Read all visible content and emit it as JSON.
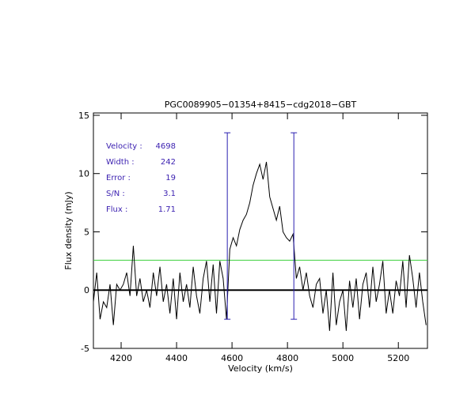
{
  "chart_data": {
    "type": "line",
    "title": "PGC0089905−01354+8415−cdg2018−GBT",
    "xlabel": "Velocity (km/s)",
    "ylabel": "Flux density (mJy)",
    "xlim": [
      4100,
      5305
    ],
    "ylim": [
      -5,
      15.2
    ],
    "xticks": [
      4200,
      4400,
      4600,
      4800,
      5000,
      5200
    ],
    "yticks": [
      -5,
      0,
      5,
      10,
      15
    ],
    "stats": [
      {
        "label": "Velocity :",
        "value": 4698
      },
      {
        "label": "Width :",
        "value": 242
      },
      {
        "label": "Error :",
        "value": 19
      },
      {
        "label": "S/N :",
        "value": 3.1
      },
      {
        "label": "Flux :",
        "value": 1.71
      }
    ],
    "markers": [
      4583,
      4823
    ],
    "marker_range": [
      -2.5,
      13.5
    ],
    "marker_color": "#2a1fb0",
    "threshold": 2.57,
    "threshold_color": "#3cd03c",
    "series": [
      {
        "color": "#000000",
        "x": [
          4100,
          4112,
          4124,
          4136,
          4148,
          4160,
          4172,
          4184,
          4196,
          4208,
          4220,
          4232,
          4244,
          4256,
          4268,
          4280,
          4292,
          4304,
          4316,
          4328,
          4340,
          4352,
          4364,
          4376,
          4388,
          4400,
          4412,
          4424,
          4436,
          4448,
          4460,
          4472,
          4484,
          4496,
          4508,
          4520,
          4532,
          4544,
          4556,
          4568,
          4580,
          4592,
          4604,
          4616,
          4628,
          4640,
          4652,
          4664,
          4676,
          4688,
          4700,
          4712,
          4724,
          4736,
          4748,
          4760,
          4772,
          4784,
          4796,
          4808,
          4820,
          4832,
          4844,
          4856,
          4868,
          4880,
          4892,
          4904,
          4916,
          4928,
          4940,
          4952,
          4964,
          4976,
          4988,
          5000,
          5012,
          5024,
          5036,
          5048,
          5060,
          5072,
          5084,
          5096,
          5108,
          5120,
          5132,
          5144,
          5156,
          5168,
          5180,
          5192,
          5204,
          5216,
          5228,
          5240,
          5252,
          5264,
          5276,
          5288,
          5300
        ],
        "values": [
          -1,
          1.5,
          -2.5,
          -1,
          -1.5,
          0.5,
          -3,
          0.5,
          0,
          0.5,
          1.5,
          -0.5,
          3.8,
          -0.5,
          1,
          -1,
          0,
          -1.5,
          1.5,
          -0.5,
          2,
          -1,
          0.5,
          -2,
          1,
          -2.5,
          1.5,
          -1,
          0.5,
          -1.5,
          2,
          -0.5,
          -2,
          1,
          2.5,
          -1,
          2.2,
          -2,
          2.5,
          1,
          -2.5,
          3.5,
          4.5,
          3.8,
          5.2,
          6,
          6.5,
          7.5,
          9,
          10,
          10.8,
          9.5,
          11,
          8,
          7,
          6,
          7.2,
          5,
          4.5,
          4.2,
          4.8,
          1,
          2,
          0,
          1.5,
          -0.5,
          -1.5,
          0.5,
          1,
          -2,
          0,
          -3.5,
          1.5,
          -3,
          -1,
          0,
          -3.5,
          0.8,
          -1.5,
          1,
          -2.5,
          0.5,
          1.5,
          -1.5,
          2,
          -1,
          0.5,
          2.5,
          -2,
          0,
          -2,
          0.8,
          -0.5,
          2.5,
          -1.5,
          3,
          1,
          -1.5,
          1.5,
          -1,
          -3
        ]
      }
    ]
  }
}
